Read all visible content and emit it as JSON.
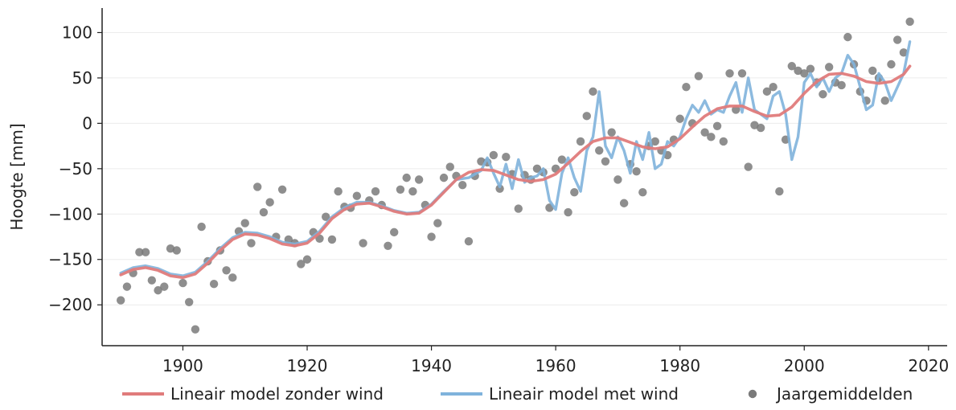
{
  "chart_data": {
    "type": "line",
    "title": "",
    "xlabel": "",
    "ylabel": "Hoogte [mm]",
    "xlim": [
      1887,
      2023
    ],
    "ylim": [
      -245,
      127
    ],
    "x_ticks": [
      1900,
      1920,
      1940,
      1960,
      1980,
      2000,
      2020
    ],
    "y_ticks": [
      100,
      50,
      0,
      -50,
      -100,
      -150,
      -200
    ],
    "y_tick_labels": [
      "100",
      "50",
      "0",
      "−50",
      "−100",
      "−150",
      "−200"
    ],
    "grid": "horizontal",
    "legend_position": "bottom",
    "colors": {
      "no_wind": "#e07b7b",
      "with_wind": "#7fb3dc",
      "annual": "#7a7a7a"
    },
    "series": [
      {
        "name": "Lineair model zonder wind",
        "kind": "line",
        "x": [
          1890,
          1892,
          1894,
          1896,
          1898,
          1900,
          1902,
          1904,
          1906,
          1908,
          1910,
          1912,
          1914,
          1916,
          1918,
          1920,
          1922,
          1924,
          1926,
          1928,
          1930,
          1932,
          1934,
          1936,
          1938,
          1940,
          1942,
          1944,
          1946,
          1948,
          1950,
          1952,
          1954,
          1956,
          1958,
          1960,
          1962,
          1964,
          1966,
          1968,
          1970,
          1972,
          1974,
          1976,
          1978,
          1980,
          1982,
          1984,
          1986,
          1988,
          1990,
          1992,
          1994,
          1996,
          1998,
          2000,
          2002,
          2004,
          2006,
          2008,
          2010,
          2012,
          2014,
          2016,
          2017
        ],
        "y": [
          -167,
          -161,
          -159,
          -162,
          -168,
          -170,
          -166,
          -154,
          -140,
          -128,
          -122,
          -123,
          -127,
          -133,
          -135,
          -132,
          -121,
          -105,
          -95,
          -89,
          -88,
          -92,
          -97,
          -100,
          -99,
          -90,
          -76,
          -62,
          -54,
          -51,
          -52,
          -57,
          -62,
          -64,
          -62,
          -56,
          -44,
          -31,
          -20,
          -16,
          -16,
          -21,
          -26,
          -28,
          -26,
          -17,
          -4,
          8,
          16,
          19,
          19,
          13,
          8,
          9,
          18,
          33,
          46,
          54,
          55,
          52,
          46,
          44,
          46,
          54,
          63
        ]
      },
      {
        "name": "Lineair model met wind",
        "kind": "line",
        "x": [
          1890,
          1892,
          1894,
          1896,
          1898,
          1900,
          1902,
          1904,
          1906,
          1908,
          1910,
          1912,
          1914,
          1916,
          1918,
          1920,
          1922,
          1924,
          1926,
          1928,
          1930,
          1932,
          1934,
          1936,
          1938,
          1940,
          1942,
          1944,
          1946,
          1948,
          1949,
          1950,
          1951,
          1952,
          1953,
          1954,
          1955,
          1956,
          1957,
          1958,
          1959,
          1960,
          1961,
          1962,
          1963,
          1964,
          1965,
          1966,
          1967,
          1968,
          1969,
          1970,
          1971,
          1972,
          1973,
          1974,
          1975,
          1976,
          1977,
          1978,
          1979,
          1980,
          1981,
          1982,
          1983,
          1984,
          1985,
          1986,
          1987,
          1988,
          1989,
          1990,
          1991,
          1992,
          1993,
          1994,
          1995,
          1996,
          1997,
          1998,
          1999,
          2000,
          2001,
          2002,
          2003,
          2004,
          2005,
          2006,
          2007,
          2008,
          2009,
          2010,
          2011,
          2012,
          2013,
          2014,
          2015,
          2016,
          2017
        ],
        "y": [
          -165,
          -159,
          -157,
          -160,
          -166,
          -168,
          -164,
          -152,
          -138,
          -126,
          -120,
          -121,
          -125,
          -131,
          -133,
          -130,
          -119,
          -103,
          -93,
          -87,
          -87,
          -91,
          -96,
          -99,
          -98,
          -89,
          -75,
          -62,
          -60,
          -52,
          -38,
          -55,
          -70,
          -45,
          -72,
          -40,
          -65,
          -60,
          -58,
          -50,
          -85,
          -95,
          -55,
          -38,
          -60,
          -75,
          -30,
          -15,
          35,
          -25,
          -38,
          -15,
          -30,
          -55,
          -20,
          -40,
          -10,
          -50,
          -45,
          -20,
          -25,
          -15,
          5,
          20,
          12,
          25,
          10,
          15,
          12,
          30,
          45,
          12,
          50,
          15,
          10,
          5,
          30,
          35,
          10,
          -40,
          -15,
          45,
          55,
          40,
          50,
          35,
          50,
          55,
          75,
          65,
          40,
          15,
          20,
          55,
          45,
          25,
          40,
          55,
          90
        ]
      },
      {
        "name": "Jaargemiddelden",
        "kind": "scatter",
        "x": [
          1890,
          1891,
          1892,
          1893,
          1894,
          1895,
          1896,
          1897,
          1898,
          1899,
          1900,
          1901,
          1902,
          1903,
          1904,
          1905,
          1906,
          1907,
          1908,
          1909,
          1910,
          1911,
          1912,
          1913,
          1914,
          1915,
          1916,
          1917,
          1918,
          1919,
          1920,
          1921,
          1922,
          1923,
          1924,
          1925,
          1926,
          1927,
          1928,
          1929,
          1930,
          1931,
          1932,
          1933,
          1934,
          1935,
          1936,
          1937,
          1938,
          1939,
          1940,
          1941,
          1942,
          1943,
          1944,
          1945,
          1946,
          1947,
          1948,
          1949,
          1950,
          1951,
          1952,
          1953,
          1954,
          1955,
          1956,
          1957,
          1958,
          1959,
          1960,
          1961,
          1962,
          1963,
          1964,
          1965,
          1966,
          1967,
          1968,
          1969,
          1970,
          1971,
          1972,
          1973,
          1974,
          1975,
          1976,
          1977,
          1978,
          1979,
          1980,
          1981,
          1982,
          1983,
          1984,
          1985,
          1986,
          1987,
          1988,
          1989,
          1990,
          1991,
          1992,
          1993,
          1994,
          1995,
          1996,
          1997,
          1998,
          1999,
          2000,
          2001,
          2002,
          2003,
          2004,
          2005,
          2006,
          2007,
          2008,
          2009,
          2010,
          2011,
          2012,
          2013,
          2014,
          2015,
          2016,
          2017
        ],
        "y": [
          -195,
          -180,
          -165,
          -142,
          -142,
          -173,
          -184,
          -180,
          -138,
          -140,
          -176,
          -197,
          -227,
          -114,
          -152,
          -177,
          -140,
          -162,
          -170,
          -119,
          -110,
          -132,
          -70,
          -98,
          -87,
          -125,
          -73,
          -128,
          -132,
          -155,
          -150,
          -120,
          -127,
          -103,
          -128,
          -75,
          -92,
          -93,
          -80,
          -132,
          -85,
          -75,
          -90,
          -135,
          -120,
          -73,
          -60,
          -75,
          -62,
          -90,
          -125,
          -110,
          -60,
          -48,
          -58,
          -68,
          -130,
          -58,
          -42,
          -43,
          -35,
          -72,
          -37,
          -56,
          -94,
          -57,
          -62,
          -50,
          -54,
          -93,
          -50,
          -40,
          -98,
          -76,
          -20,
          8,
          35,
          -30,
          -42,
          -10,
          -62,
          -88,
          -45,
          -53,
          -76,
          -25,
          -20,
          -30,
          -35,
          -18,
          5,
          40,
          0,
          52,
          -10,
          -15,
          -3,
          -20,
          55,
          15,
          55,
          -48,
          -2,
          -5,
          35,
          40,
          -75,
          -18,
          63,
          58,
          55,
          60,
          45,
          32,
          62,
          45,
          42,
          95,
          65,
          35,
          25,
          58,
          50,
          25,
          65,
          92,
          78,
          112
        ]
      }
    ]
  }
}
